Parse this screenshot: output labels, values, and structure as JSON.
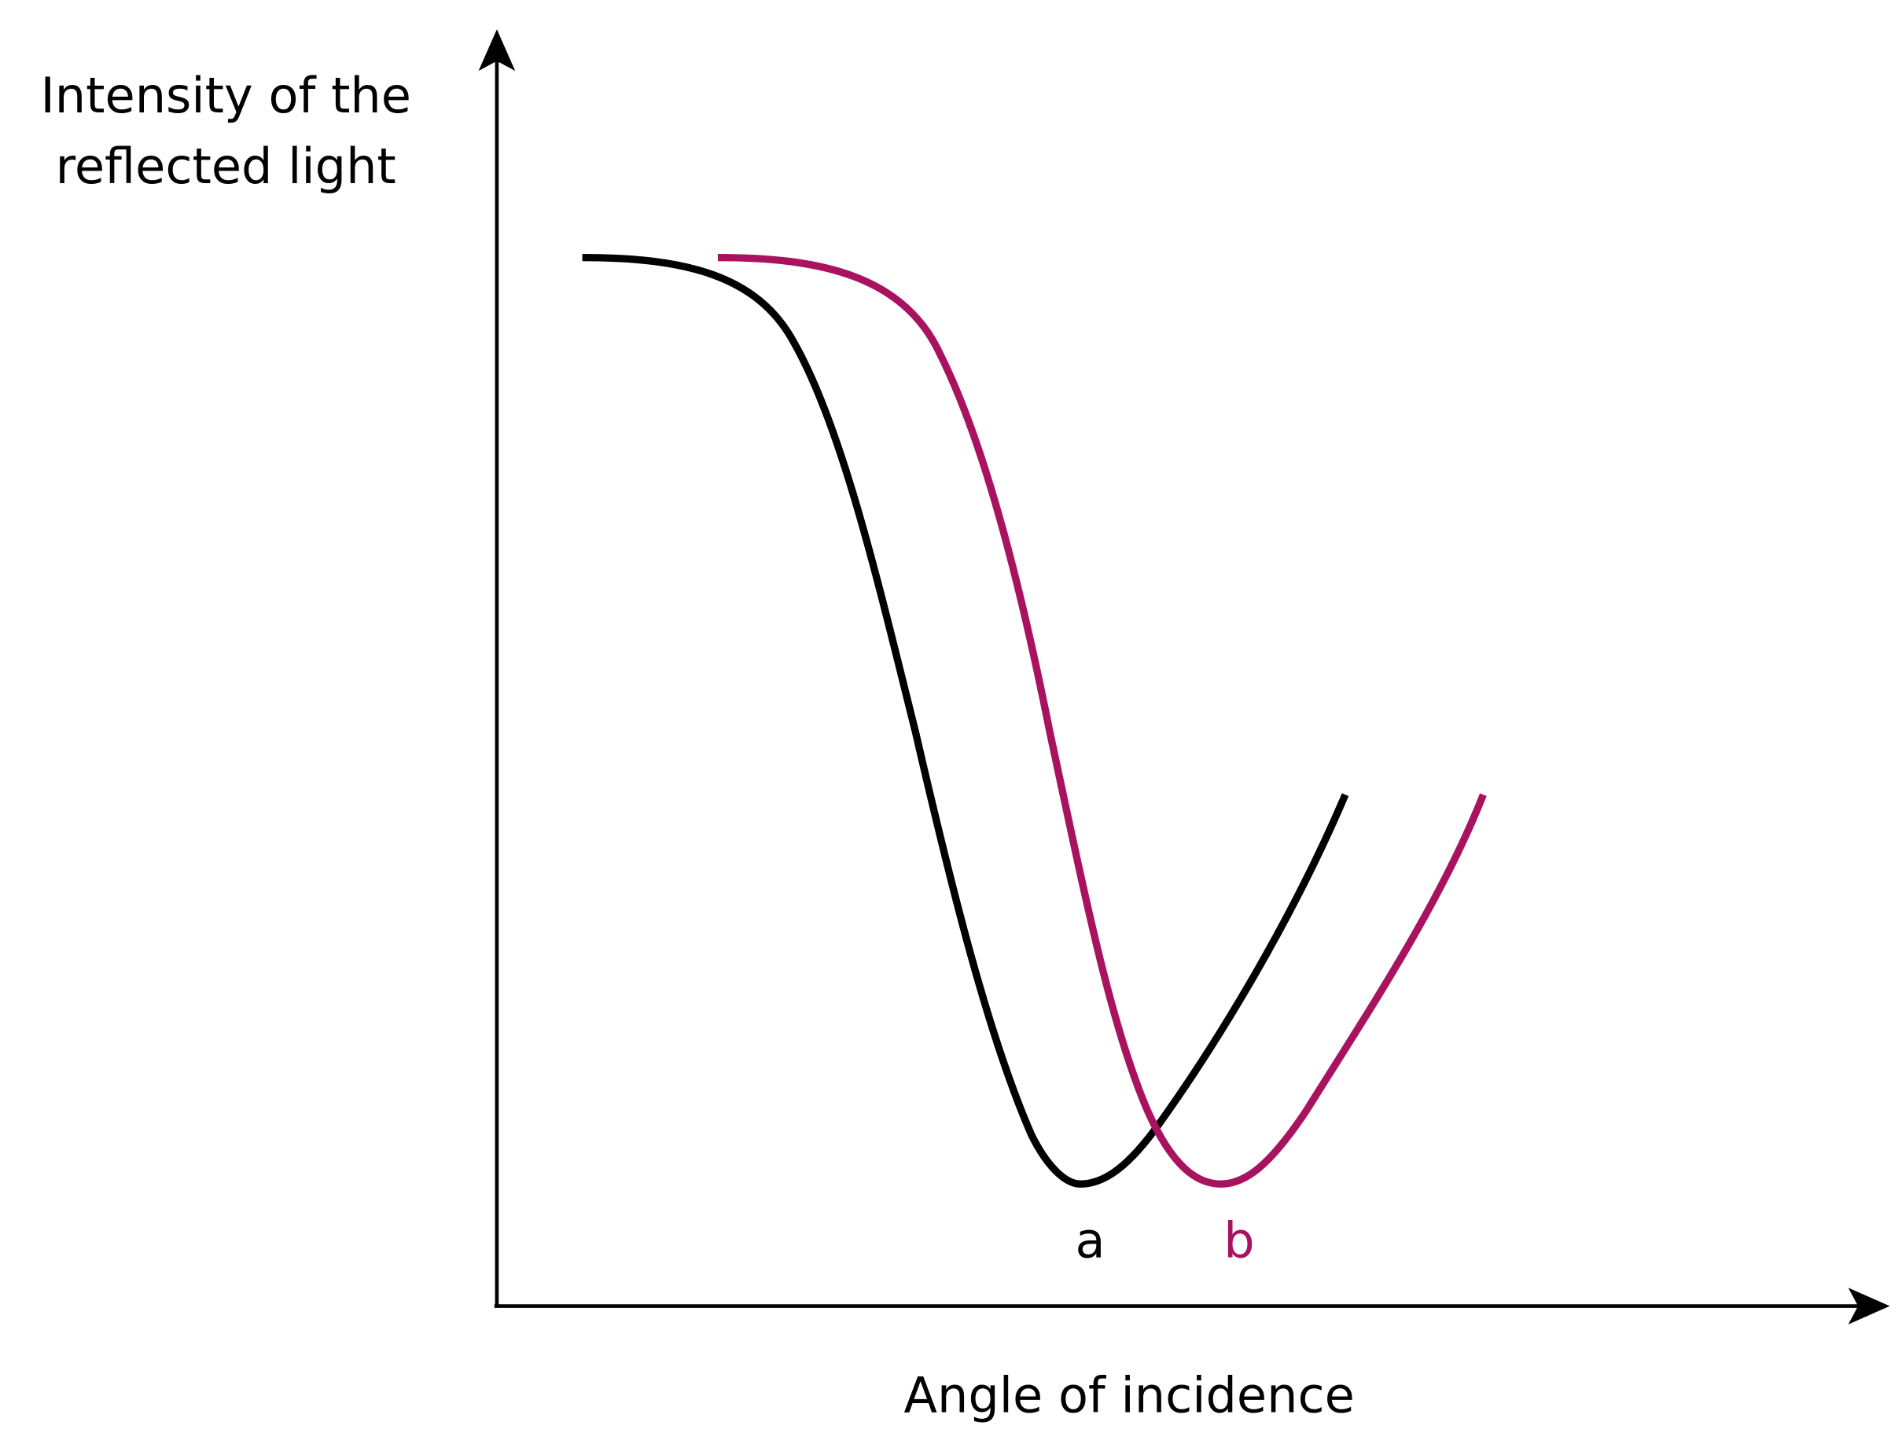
{
  "y_axis_label": [
    "Intensity of the",
    "reflected light"
  ],
  "x_axis_label": "Angle of incidence",
  "curve_labels": [
    "a",
    "b"
  ]
}
